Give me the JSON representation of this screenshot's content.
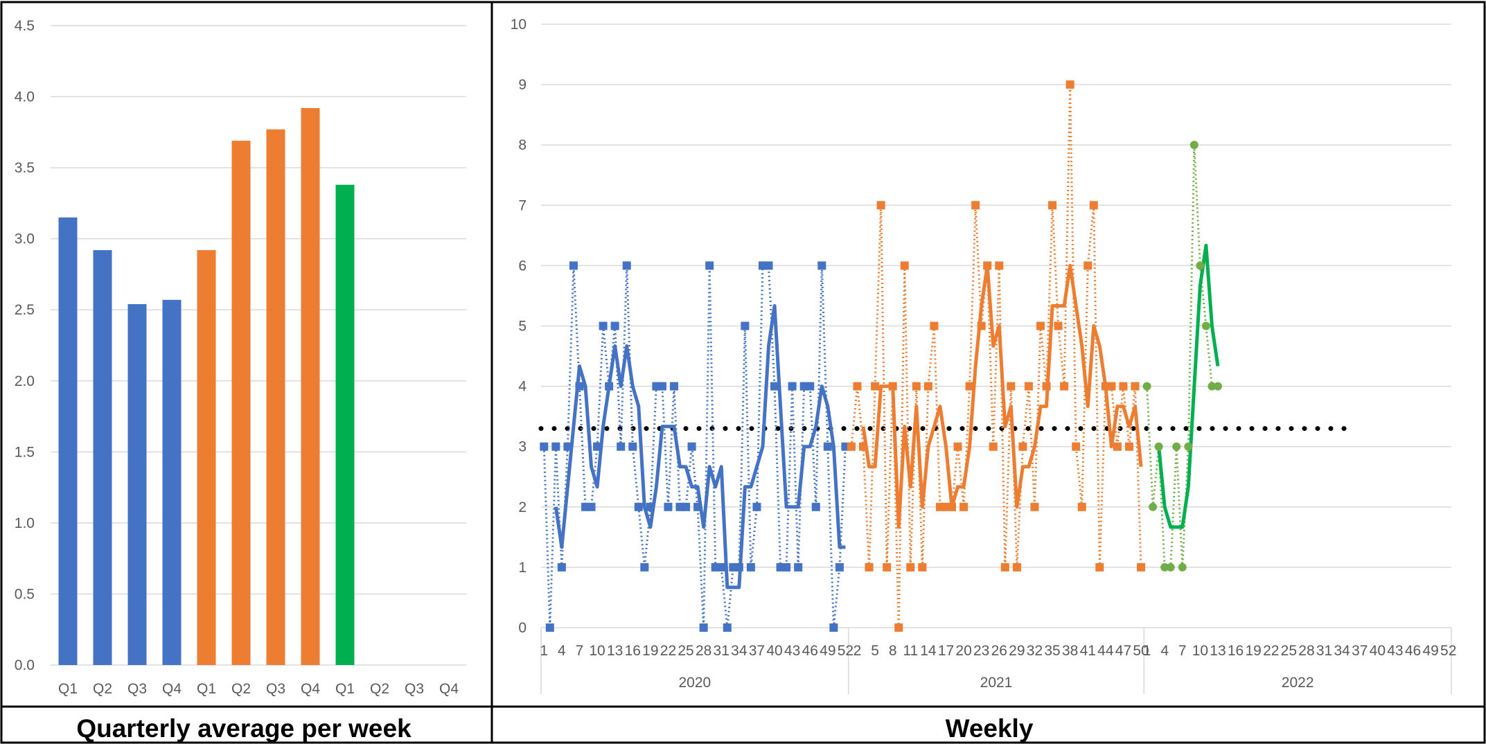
{
  "panels": {
    "left_title": "Quarterly average per week",
    "right_title": "Weekly"
  },
  "chart_data": [
    {
      "type": "bar",
      "title": "Quarterly average per week",
      "ylim": [
        0,
        4.5
      ],
      "ytick_step": 0.5,
      "yticks": [
        "0.0",
        "0.5",
        "1.0",
        "1.5",
        "2.0",
        "2.5",
        "3.0",
        "3.5",
        "4.0",
        "4.5"
      ],
      "categories": [
        "Q1",
        "Q2",
        "Q3",
        "Q4",
        "Q1",
        "Q2",
        "Q3",
        "Q4",
        "Q1",
        "Q2",
        "Q3",
        "Q4"
      ],
      "values": [
        3.15,
        2.92,
        2.54,
        2.57,
        2.92,
        3.69,
        3.77,
        3.92,
        3.38,
        null,
        null,
        null
      ],
      "bar_colors": [
        "#4472C4",
        "#4472C4",
        "#4472C4",
        "#4472C4",
        "#ED7D31",
        "#ED7D31",
        "#ED7D31",
        "#ED7D31",
        "#00B050",
        "#00B050",
        "#00B050",
        "#00B050"
      ],
      "grid": true,
      "legend": "none"
    },
    {
      "type": "line",
      "title": "Weekly",
      "ylim": [
        0,
        10
      ],
      "yticks": [
        "0",
        "1",
        "2",
        "3",
        "4",
        "5",
        "6",
        "7",
        "8",
        "9",
        "10"
      ],
      "year_labels": [
        "2020",
        "2021",
        "2022"
      ],
      "week_labels_2020": [
        "1",
        "4",
        "7",
        "10",
        "13",
        "16",
        "19",
        "22",
        "25",
        "28",
        "31",
        "34",
        "37",
        "40",
        "43",
        "46",
        "49",
        "52"
      ],
      "week_labels_2021": [
        "2",
        "5",
        "8",
        "11",
        "14",
        "17",
        "20",
        "23",
        "26",
        "29",
        "32",
        "35",
        "38",
        "41",
        "44",
        "47",
        "50"
      ],
      "week_labels_2022": [
        "1",
        "4",
        "7",
        "10",
        "13",
        "16",
        "19",
        "22",
        "25",
        "28",
        "31",
        "34",
        "37",
        "40",
        "43",
        "46",
        "49",
        "52"
      ],
      "series": [
        {
          "year": "2020",
          "color": "#4472C4",
          "values": [
            3,
            0,
            3,
            1,
            3,
            6,
            4,
            2,
            2,
            3,
            5,
            4,
            5,
            3,
            6,
            3,
            2,
            1,
            2,
            4,
            4,
            2,
            4,
            2,
            2,
            3,
            2,
            0,
            6,
            1,
            1,
            0,
            1,
            1,
            5,
            1,
            2,
            6,
            6,
            4,
            1,
            1,
            4,
            1,
            4,
            4,
            2,
            6,
            3,
            0,
            1,
            3
          ]
        },
        {
          "year": "2021",
          "color": "#ED7D31",
          "values": [
            3,
            4,
            3,
            1,
            4,
            7,
            1,
            4,
            0,
            6,
            1,
            4,
            1,
            4,
            5,
            2,
            2,
            2,
            3,
            2,
            4,
            7,
            5,
            6,
            3,
            6,
            1,
            4,
            1,
            3,
            4,
            2,
            5,
            4,
            7,
            5,
            4,
            9,
            3,
            2,
            6,
            7,
            1,
            4,
            4,
            3,
            4,
            3,
            4,
            1
          ]
        },
        {
          "year": "2022",
          "color": "#70AD47",
          "avg_color": "#00B050",
          "values": [
            4,
            2,
            3,
            1,
            1,
            3,
            1,
            3,
            8,
            6,
            5,
            4,
            4
          ]
        }
      ],
      "average_line": {
        "value": 3.3,
        "color": "#000000"
      },
      "grid": true,
      "legend": "none"
    }
  ]
}
